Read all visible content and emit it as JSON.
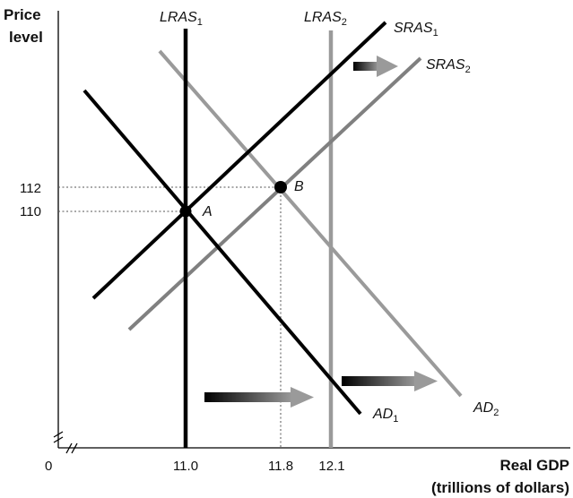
{
  "axes": {
    "y_title_line1": "Price",
    "y_title_line2": "level",
    "x_title_line1": "Real GDP",
    "x_title_line2": "(trillions of dollars)",
    "origin_label": "0"
  },
  "y_ticks": [
    "112",
    "110"
  ],
  "x_ticks": [
    "11.0",
    "11.8",
    "12.1"
  ],
  "curves": {
    "lras1": {
      "base": "LRAS",
      "sub": "1"
    },
    "lras2": {
      "base": "LRAS",
      "sub": "2"
    },
    "sras1": {
      "base": "SRAS",
      "sub": "1"
    },
    "sras2": {
      "base": "SRAS",
      "sub": "2"
    },
    "ad1": {
      "base": "AD",
      "sub": "1"
    },
    "ad2": {
      "base": "AD",
      "sub": "2"
    }
  },
  "points": {
    "a": "A",
    "b": "B"
  },
  "colors": {
    "original_curves": "#000000",
    "new_curves": "#9a9a9a",
    "sras2_curve": "#808080",
    "guide_lines": "#555555",
    "shift_arrow": "#707070"
  }
}
